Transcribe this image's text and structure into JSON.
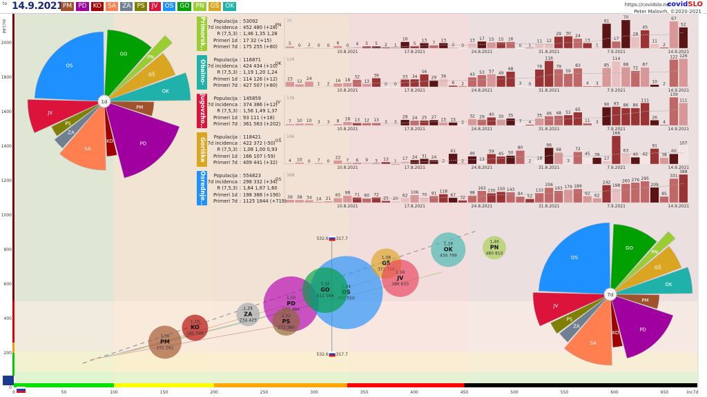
{
  "header": {
    "to_label": "to",
    "date": "14.9.2021",
    "url": "https://covidslo.net",
    "brand_a": "covid",
    "brand_b": "SLO",
    "author": "Peter Malovrh, ©2020-2021"
  },
  "legend": [
    {
      "code": "PM",
      "color": "#a0522d"
    },
    {
      "code": "PD",
      "color": "#a000a0"
    },
    {
      "code": "KO",
      "color": "#a00000"
    },
    {
      "code": "SA",
      "color": "#ff7f50"
    },
    {
      "code": "ZA",
      "color": "#708090"
    },
    {
      "code": "PS",
      "color": "#808000"
    },
    {
      "code": "JV",
      "color": "#dc143c"
    },
    {
      "code": "OS",
      "color": "#1e90ff"
    },
    {
      "code": "GO",
      "color": "#00a000"
    },
    {
      "code": "PN",
      "color": "#9acd32"
    },
    {
      "code": "GŠ",
      "color": "#daa520"
    },
    {
      "code": "OK",
      "color": "#20b2aa"
    }
  ],
  "stat_labels": [
    "Populacija",
    "7d incidenca",
    "R (7,5,3)",
    "Primeri 1d",
    "Primeri 7d"
  ],
  "chart_data": [
    {
      "type": "bar",
      "panels": [
        {
          "tag": "Primorsk...",
          "code": "PN",
          "color": "#9acd32",
          "max": "70",
          "stats": [
            "53092",
            "452 480 (+28)",
            "1,46 1,35 1,28",
            "17 32 (+15)",
            "175 255 (+80)"
          ],
          "values": [
            5,
            0,
            2,
            0,
            0,
            6,
            0,
            4,
            5,
            5,
            2,
            1,
            16,
            5,
            13,
            7,
            13,
            2,
            0,
            13,
            17,
            15,
            15,
            16,
            0,
            1,
            11,
            12,
            29,
            30,
            24,
            13,
            1,
            61,
            17,
            70,
            28,
            45,
            11,
            2,
            67,
            52
          ]
        },
        {
          "tag": "Obalno-k...",
          "code": "OK",
          "color": "#20b2aa",
          "max": "126",
          "stats": [
            "116871",
            "424 434 (+10)",
            "1,19 1,20 1,24",
            "114 126 (+12)",
            "427 507 (+80)"
          ],
          "values": [
            23,
            12,
            24,
            1,
            2,
            16,
            18,
            32,
            13,
            39,
            0,
            0,
            33,
            34,
            56,
            29,
            36,
            6,
            2,
            43,
            53,
            57,
            49,
            68,
            3,
            0,
            78,
            116,
            79,
            59,
            83,
            4,
            3,
            85,
            114,
            88,
            72,
            87,
            10,
            2,
            122,
            126
          ]
        },
        {
          "tag": "Jugovzho...",
          "code": "JV",
          "color": "#dc143c",
          "max": "139",
          "stats": [
            "145859",
            "374 386 (+12)",
            "1,56 1,49 1,37",
            "93 111 (+18)",
            "361 563 (+202)"
          ],
          "values": [
            7,
            10,
            10,
            3,
            3,
            8,
            18,
            13,
            12,
            13,
            3,
            3,
            28,
            24,
            25,
            27,
            15,
            15,
            2,
            32,
            29,
            40,
            30,
            35,
            7,
            4,
            35,
            46,
            48,
            51,
            65,
            11,
            3,
            90,
            93,
            86,
            86,
            111,
            26,
            4,
            139,
            111
          ]
        },
        {
          "tag": "Goriška",
          "code": "GŠ",
          "color": "#daa520",
          "max": "166",
          "stats": [
            "118421",
            "422 372 (-50)",
            "1,08 1,00 0,93",
            "166 107 (-59)",
            "409 441 (+32)"
          ],
          "values": [
            4,
            10,
            0,
            7,
            0,
            22,
            7,
            6,
            9,
            3,
            13,
            1,
            17,
            24,
            31,
            24,
            2,
            61,
            2,
            46,
            13,
            59,
            45,
            50,
            80,
            2,
            18,
            96,
            68,
            3,
            72,
            45,
            38,
            17,
            166,
            63,
            40,
            42,
            91,
            38,
            60,
            107
          ]
        },
        {
          "tag": "Osrednje...",
          "code": "OS",
          "color": "#1e90ff",
          "max": "388",
          "stats": [
            "554823",
            "298 332 (+34)",
            "1,64 1,67 1,60",
            "198 388 (+190)",
            "1125 1844 (+719)"
          ],
          "values": [
            39,
            38,
            34,
            14,
            21,
            65,
            98,
            71,
            60,
            72,
            25,
            20,
            62,
            106,
            70,
            91,
            118,
            67,
            32,
            98,
            163,
            130,
            150,
            143,
            84,
            52,
            133,
            206,
            163,
            179,
            189,
            92,
            62,
            242,
            198,
            260,
            276,
            295,
            209,
            85,
            331,
            388
          ]
        }
      ],
      "date_ticks": [
        "10.8.2021",
        "17.8.2021",
        "24.8.2021",
        "31.8.2021",
        "7.9.2021",
        "14.9.2021"
      ]
    },
    {
      "type": "scatter",
      "xlabel": "Inc7d",
      "ylabel": "Inc14d",
      "xlim": [
        0,
        700
      ],
      "ylim": [
        0,
        2200
      ],
      "xticks": [
        "0",
        "50",
        "100",
        "150",
        "200",
        "250",
        "300",
        "350",
        "400",
        "450",
        "500",
        "550",
        "600",
        "650"
      ],
      "yticks": [
        "200",
        "400",
        "600",
        "800",
        "1000",
        "1200",
        "1400",
        "1600",
        "1800",
        "2000"
      ],
      "x_zones": [
        {
          "to": 100,
          "color": "#00e000"
        },
        {
          "to": 200,
          "color": "#ffff00"
        },
        {
          "to": 333,
          "color": "#ffa500"
        },
        {
          "to": 450,
          "color": "#ff0000"
        },
        {
          "to": 700,
          "color": "#000000"
        }
      ],
      "reference": {
        "inc14d": "532.6",
        "inc7d": "317.7"
      },
      "bubbles": [
        {
          "code": "PM",
          "r": "1,36",
          "x": 151,
          "y": 262,
          "color": "#a0522d"
        },
        {
          "code": "KO",
          "r": "1,16",
          "x": 181,
          "y": 346,
          "color": "#b00000"
        },
        {
          "code": "ZA",
          "r": "1,24",
          "x": 234,
          "y": 423,
          "color": "#a0a8ac"
        },
        {
          "code": "PD",
          "r": "1,50",
          "x": 277,
          "y": 484,
          "color": "#b000b0"
        },
        {
          "code": "PS",
          "r": "2,52",
          "x": 272,
          "y": 380,
          "color": "#8b6a30"
        },
        {
          "code": "OS",
          "r": "1,64",
          "x": 332,
          "y": 550,
          "color": "#1e90ff"
        },
        {
          "code": "GO",
          "r": "1,32",
          "x": 311,
          "y": 564,
          "color": "#00a040"
        },
        {
          "code": "GŠ",
          "r": "1,08",
          "x": 372,
          "y": 718,
          "color": "#daa520"
        },
        {
          "code": "JV",
          "r": "1,56",
          "x": 386,
          "y": 633,
          "color": "#e8405a"
        },
        {
          "code": "OK",
          "r": "1,19",
          "x": 434,
          "y": 799,
          "color": "#40b8b0"
        },
        {
          "code": "PN",
          "r": "1,46",
          "x": 480,
          "y": 810,
          "color": "#a8d050"
        }
      ]
    },
    {
      "type": "pie",
      "pies": [
        {
          "center_label": "1d"
        },
        {
          "center_label": "7d"
        }
      ],
      "sectors": [
        "GO",
        "PN",
        "GŠ",
        "OK",
        "PM",
        "PD",
        "KO",
        "SA",
        "ZA",
        "PS",
        "JV",
        "OS"
      ]
    }
  ]
}
